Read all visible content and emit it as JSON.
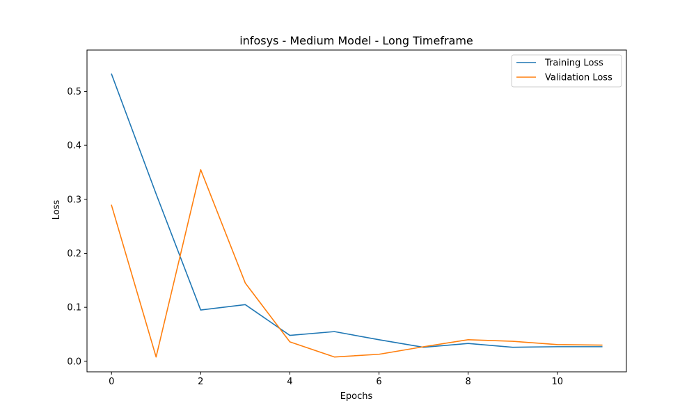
{
  "chart_data": {
    "type": "line",
    "title": "infosys - Medium Model - Long Timeframe",
    "xlabel": "Epochs",
    "ylabel": "Loss",
    "x": [
      0,
      1,
      2,
      3,
      4,
      5,
      6,
      7,
      8,
      9,
      10,
      11
    ],
    "xlim": [
      -0.55,
      11.55
    ],
    "ylim": [
      -0.0195,
      0.5765
    ],
    "xticks": [
      0,
      2,
      4,
      6,
      8,
      10
    ],
    "xtick_labels": [
      "0",
      "2",
      "4",
      "6",
      "8",
      "10"
    ],
    "yticks": [
      0.0,
      0.1,
      0.2,
      0.3,
      0.4,
      0.5
    ],
    "ytick_labels": [
      "0.0",
      "0.1",
      "0.2",
      "0.3",
      "0.4",
      "0.5"
    ],
    "grid": false,
    "legend_position": "top-right",
    "series": [
      {
        "name": "Training Loss",
        "color": "#1f77b4",
        "values": [
          0.532,
          0.31,
          0.095,
          0.105,
          0.048,
          0.055,
          0.04,
          0.026,
          0.033,
          0.026,
          0.027,
          0.027
        ]
      },
      {
        "name": "Validation Loss",
        "color": "#ff7f0e",
        "values": [
          0.289,
          0.008,
          0.355,
          0.145,
          0.036,
          0.008,
          0.013,
          0.027,
          0.04,
          0.037,
          0.031,
          0.03
        ]
      }
    ]
  }
}
